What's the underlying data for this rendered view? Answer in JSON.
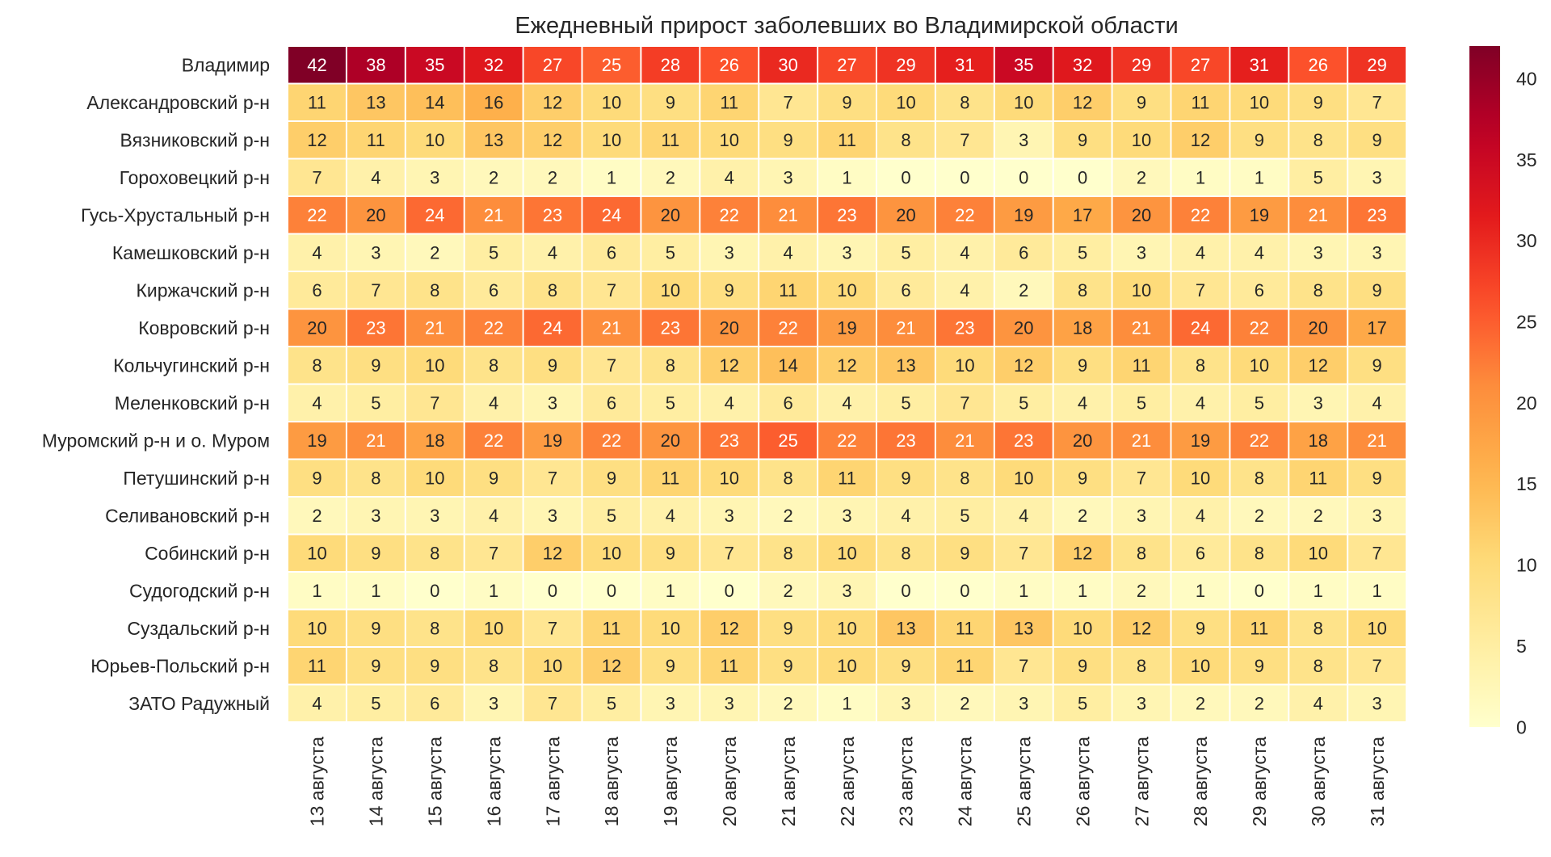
{
  "chart_data": {
    "type": "heatmap",
    "title": "Ежедневный прирост заболевших во Владимирской области",
    "xlabel": "",
    "ylabel": "",
    "columns": [
      "13 августа",
      "14 августа",
      "15 августа",
      "16 августа",
      "17 августа",
      "18 августа",
      "19 августа",
      "20 августа",
      "21 августа",
      "22 августа",
      "23 августа",
      "24 августа",
      "25 августа",
      "26 августа",
      "27 августа",
      "28 августа",
      "29 августа",
      "30 августа",
      "31 августа"
    ],
    "rows": [
      "Владимир",
      "Александровский р-н",
      "Вязниковский р-н",
      "Гороховецкий р-н",
      "Гусь-Хрустальный р-н",
      "Камешковский р-н",
      "Киржачский р-н",
      "Ковровский р-н",
      "Кольчугинский р-н",
      "Меленковский р-н",
      "Муромский р-н и о. Муром",
      "Петушинский р-н",
      "Селивановский р-н",
      "Собинский р-н",
      "Судогодский р-н",
      "Суздальский р-н",
      "Юрьев-Польский р-н",
      "ЗАТО Радужный"
    ],
    "values": [
      [
        42,
        38,
        35,
        32,
        27,
        25,
        28,
        26,
        30,
        27,
        29,
        31,
        35,
        32,
        29,
        27,
        31,
        26,
        29
      ],
      [
        11,
        13,
        14,
        16,
        12,
        10,
        9,
        11,
        7,
        9,
        10,
        8,
        10,
        12,
        9,
        11,
        10,
        9,
        7
      ],
      [
        12,
        11,
        10,
        13,
        12,
        10,
        11,
        10,
        9,
        11,
        8,
        7,
        3,
        9,
        10,
        12,
        9,
        8,
        9
      ],
      [
        7,
        4,
        3,
        2,
        2,
        1,
        2,
        4,
        3,
        1,
        0,
        0,
        0,
        0,
        2,
        1,
        1,
        5,
        3
      ],
      [
        22,
        20,
        24,
        21,
        23,
        24,
        20,
        22,
        21,
        23,
        20,
        22,
        19,
        17,
        20,
        22,
        19,
        21,
        23
      ],
      [
        4,
        3,
        2,
        5,
        4,
        6,
        5,
        3,
        4,
        3,
        5,
        4,
        6,
        5,
        3,
        4,
        4,
        3,
        3
      ],
      [
        6,
        7,
        8,
        6,
        8,
        7,
        10,
        9,
        11,
        10,
        6,
        4,
        2,
        8,
        10,
        7,
        6,
        8,
        9
      ],
      [
        20,
        23,
        21,
        22,
        24,
        21,
        23,
        20,
        22,
        19,
        21,
        23,
        20,
        18,
        21,
        24,
        22,
        20,
        17
      ],
      [
        8,
        9,
        10,
        8,
        9,
        7,
        8,
        12,
        14,
        12,
        13,
        10,
        12,
        9,
        11,
        8,
        10,
        12,
        9
      ],
      [
        4,
        5,
        7,
        4,
        3,
        6,
        5,
        4,
        6,
        4,
        5,
        7,
        5,
        4,
        5,
        4,
        5,
        3,
        4
      ],
      [
        19,
        21,
        18,
        22,
        19,
        22,
        20,
        23,
        25,
        22,
        23,
        21,
        23,
        20,
        21,
        19,
        22,
        18,
        21
      ],
      [
        9,
        8,
        10,
        9,
        7,
        9,
        11,
        10,
        8,
        11,
        9,
        8,
        10,
        9,
        7,
        10,
        8,
        11,
        9
      ],
      [
        2,
        3,
        3,
        4,
        3,
        5,
        4,
        3,
        2,
        3,
        4,
        5,
        4,
        2,
        3,
        4,
        2,
        2,
        3
      ],
      [
        10,
        9,
        8,
        7,
        12,
        10,
        9,
        7,
        8,
        10,
        8,
        9,
        7,
        12,
        8,
        6,
        8,
        10,
        7
      ],
      [
        1,
        1,
        0,
        1,
        0,
        0,
        1,
        0,
        2,
        3,
        0,
        0,
        1,
        1,
        2,
        1,
        0,
        1,
        1
      ],
      [
        10,
        9,
        8,
        10,
        7,
        11,
        10,
        12,
        9,
        10,
        13,
        11,
        13,
        10,
        12,
        9,
        11,
        8,
        10
      ],
      [
        11,
        9,
        9,
        8,
        10,
        12,
        9,
        11,
        9,
        10,
        9,
        11,
        7,
        9,
        8,
        10,
        9,
        8,
        7
      ],
      [
        4,
        5,
        6,
        3,
        7,
        5,
        3,
        3,
        2,
        1,
        3,
        2,
        3,
        5,
        3,
        2,
        2,
        4,
        3
      ]
    ],
    "vmin": 0,
    "vmax": 42,
    "colorbar": {
      "ticks": [
        0,
        5,
        10,
        15,
        20,
        25,
        30,
        35,
        40
      ],
      "colormap": "YlOrRd"
    },
    "grid": false,
    "annotated": true
  }
}
